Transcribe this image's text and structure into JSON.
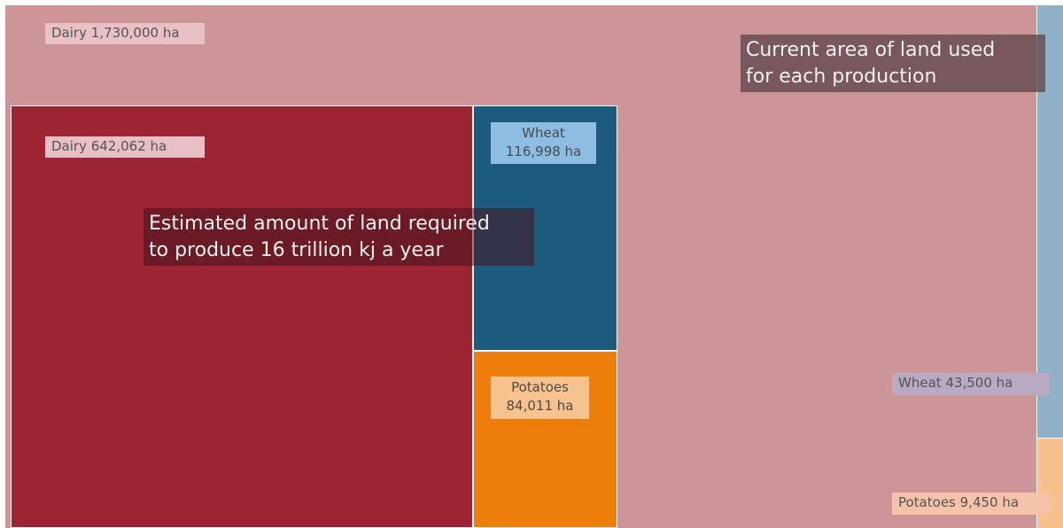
{
  "chart_data": {
    "type": "treemap",
    "unit": "ha",
    "groups": [
      {
        "name": "Current area of land used for each production",
        "items": [
          {
            "name": "Dairy",
            "value": 1730000,
            "label": "Dairy 1,730,000 ha",
            "color": "#ce9599"
          },
          {
            "name": "Wheat",
            "value": 43500,
            "label": "Wheat 43,500 ha",
            "color": "#90b0c7"
          },
          {
            "name": "Potatoes",
            "value": 9450,
            "label": "Potatoes 9,450 ha",
            "color": "#f7c18d"
          }
        ]
      },
      {
        "name": "Estimated amount of land required to produce 16 trillion kj a year",
        "items": [
          {
            "name": "Dairy",
            "value": 642062,
            "label": "Dairy 642,062 ha",
            "color": "#9c2433"
          },
          {
            "name": "Wheat",
            "value": 116998,
            "label_line1": "Wheat",
            "label_line2": "116,998 ha",
            "color": "#1c5a7e"
          },
          {
            "name": "Potatoes",
            "value": 84011,
            "label_line1": "Potatoes",
            "label_line2": "84,011 ha",
            "color": "#ee7e0b"
          }
        ]
      }
    ]
  },
  "callouts": {
    "current": {
      "line1": "Current area of land used",
      "line2": "for each production"
    },
    "required": {
      "line1": "Estimated amount of land required",
      "line2": "to produce 16 trillion kj a year"
    }
  }
}
